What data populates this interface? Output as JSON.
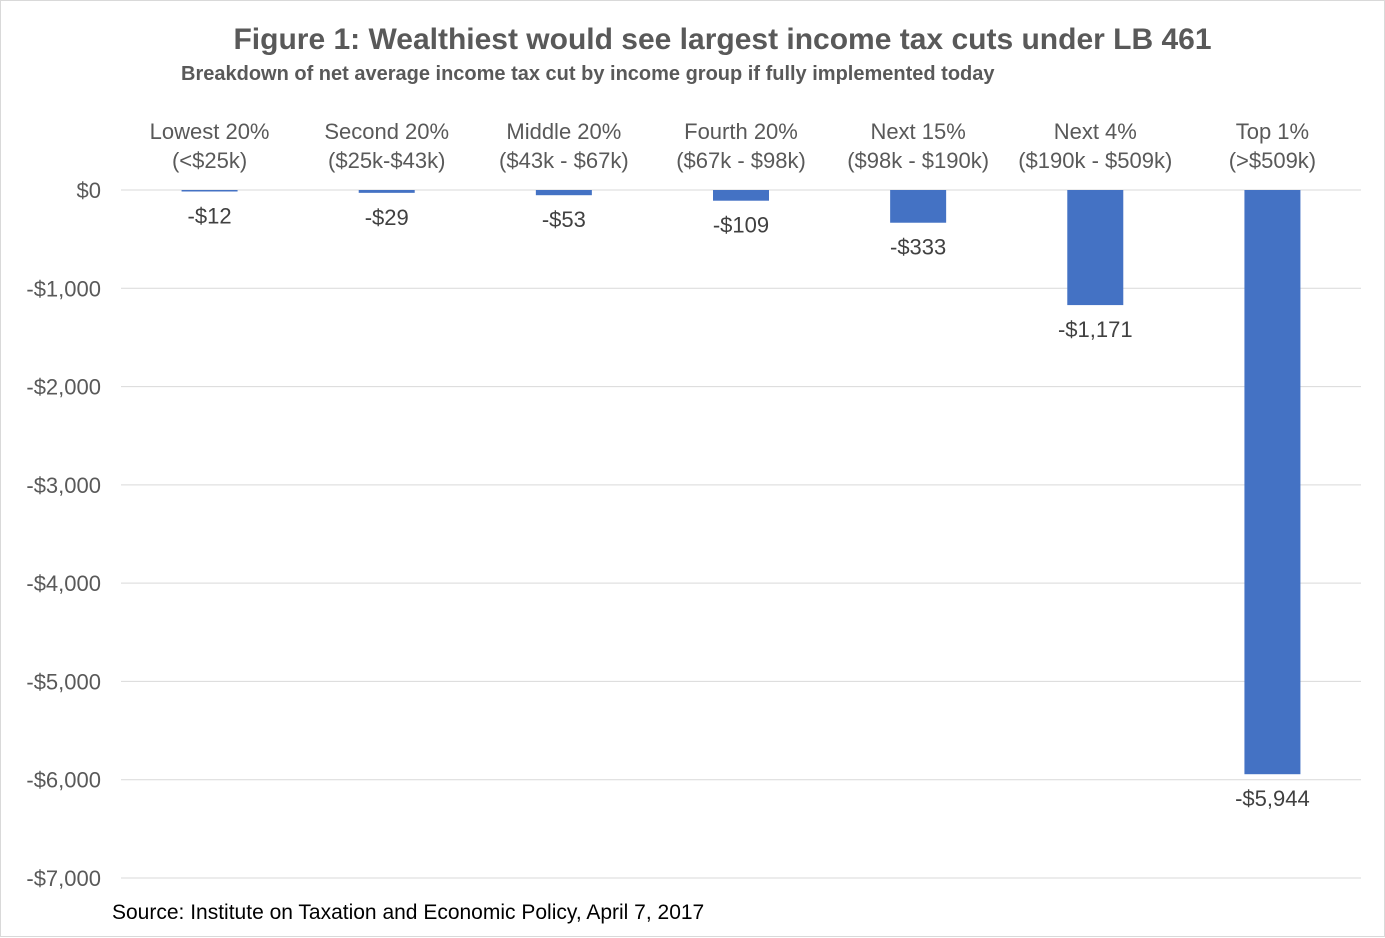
{
  "title": "Figure 1: Wealthiest would see largest income tax cuts under LB 461",
  "subtitle": "Breakdown of net average income tax cut by income group if fully implemented today",
  "source": "Source: Institute on Taxation and Economic Policy, April 7, 2017",
  "colors": {
    "bar": "#4472C4",
    "gridline": "#d9d9d9",
    "tick_text": "#595959",
    "title_text": "#595959"
  },
  "chart_data": {
    "type": "bar",
    "title": "Figure 1: Wealthiest would see largest income tax cuts under LB 461",
    "subtitle": "Breakdown of net average income tax cut by income group if fully implemented today",
    "categories": [
      [
        "Lowest 20%",
        "(<$25k)"
      ],
      [
        "Second 20%",
        "($25k-$43k)"
      ],
      [
        "Middle 20%",
        "($43k - $67k)"
      ],
      [
        "Fourth 20%",
        "($67k - $98k)"
      ],
      [
        "Next 15%",
        "($98k - $190k)"
      ],
      [
        "Next 4%",
        "($190k - $509k)"
      ],
      [
        "Top 1%",
        "(>$509k)"
      ]
    ],
    "values": [
      -12,
      -29,
      -53,
      -109,
      -333,
      -1171,
      -5944
    ],
    "data_labels": [
      "-$12",
      "-$29",
      "-$53",
      "-$109",
      "-$333",
      "-$1,171",
      "-$5,944"
    ],
    "ylim": [
      -7000,
      0
    ],
    "yticks": [
      0,
      -1000,
      -2000,
      -3000,
      -4000,
      -5000,
      -6000,
      -7000
    ],
    "ytick_labels": [
      "$0",
      "-$1,000",
      "-$2,000",
      "-$3,000",
      "-$4,000",
      "-$5,000",
      "-$6,000",
      "-$7,000"
    ],
    "category_axis_position": "top",
    "grid": true,
    "legend": "none",
    "xlabel": "",
    "ylabel": ""
  }
}
